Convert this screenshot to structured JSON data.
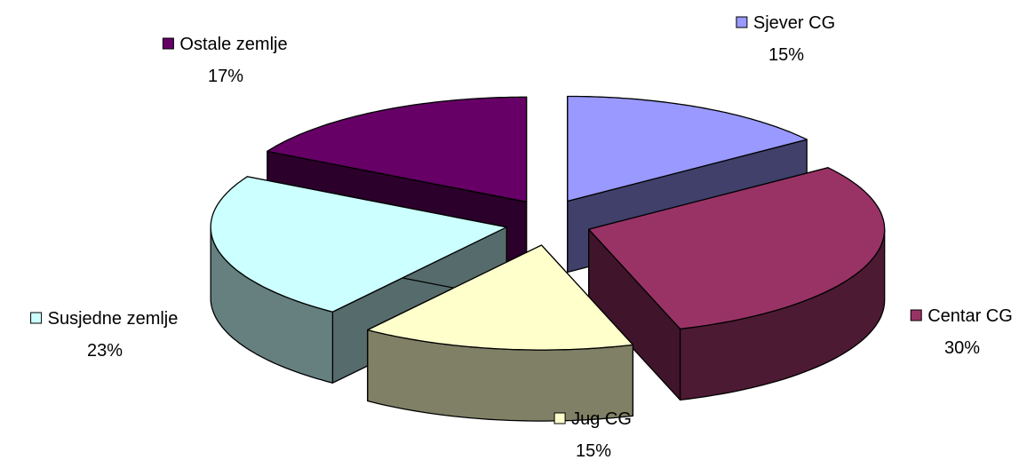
{
  "chart_data": {
    "type": "pie",
    "title": "",
    "slices": [
      {
        "label": "Sjever CG",
        "value": 15,
        "value_text": "15%",
        "color": "#9999FF"
      },
      {
        "label": "Centar CG",
        "value": 30,
        "value_text": "30%",
        "color": "#993366"
      },
      {
        "label": "Jug CG",
        "value": 15,
        "value_text": "15%",
        "color": "#FFFFCC"
      },
      {
        "label": "Susjedne zemlje",
        "value": 23,
        "value_text": "23%",
        "color": "#CCFFFF"
      },
      {
        "label": "Ostale zemlje",
        "value": 17,
        "value_text": "17%",
        "color": "#660066"
      }
    ]
  }
}
